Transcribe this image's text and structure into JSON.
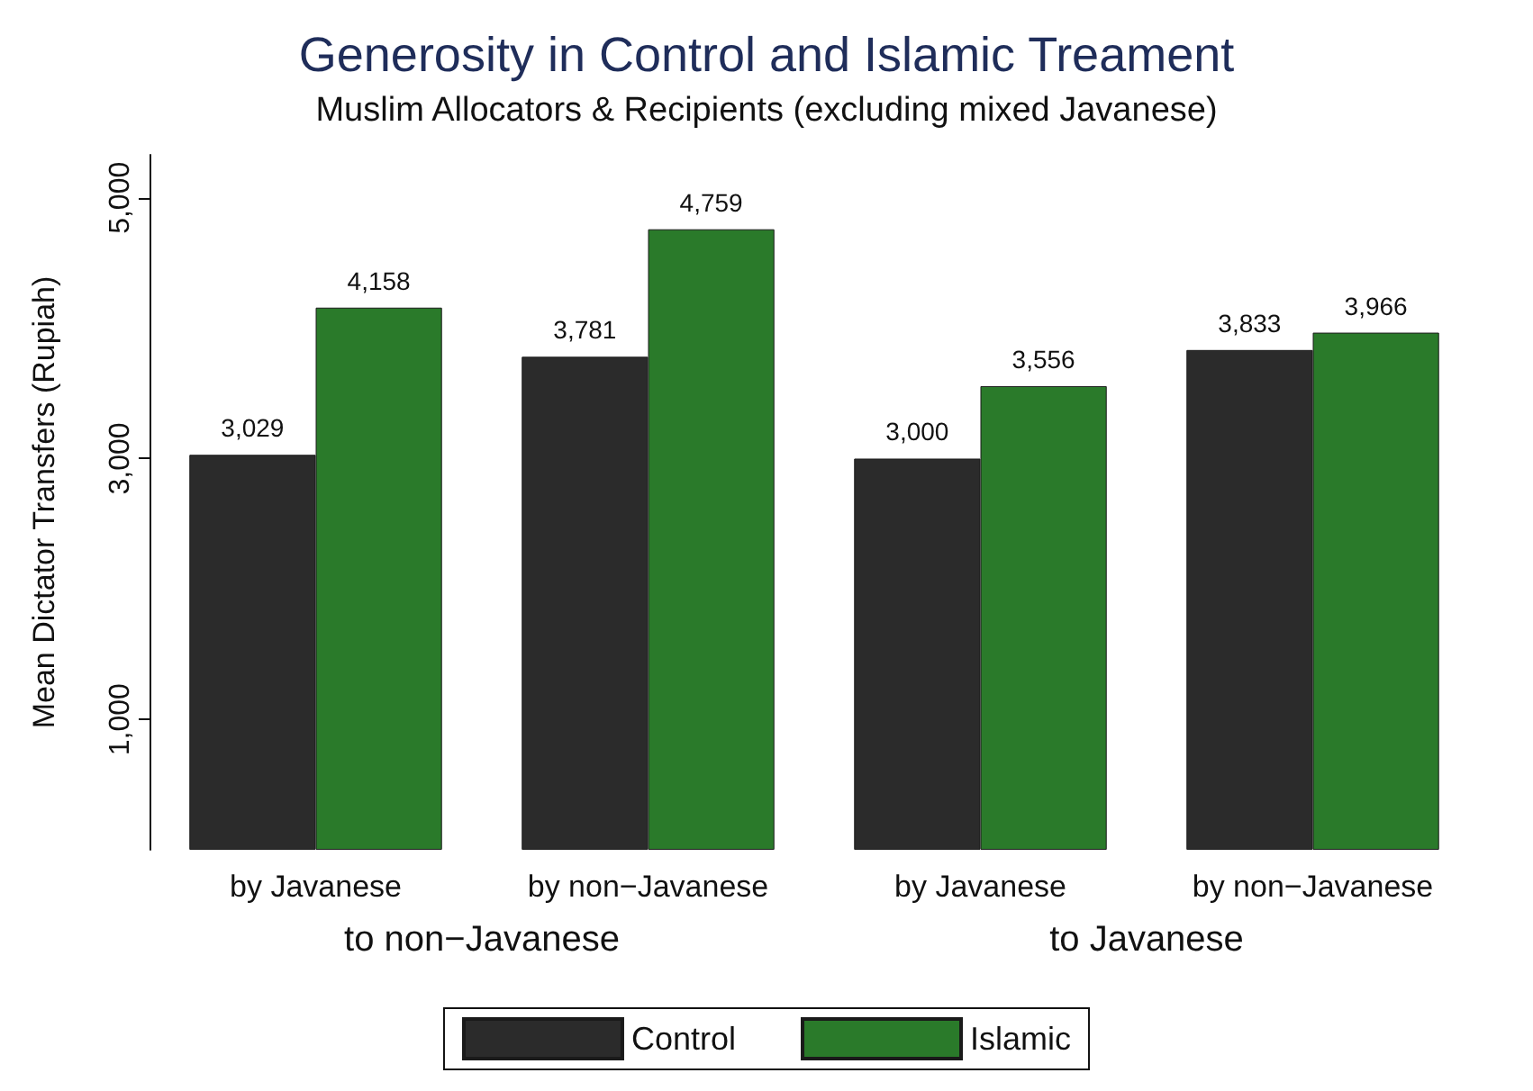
{
  "chart_data": {
    "type": "bar",
    "title": "Generosity in Control and Islamic Treament",
    "subtitle": "Muslim Allocators & Recipients (excluding mixed Javanese)",
    "ylabel": "Mean Dictator Transfers (Rupiah)",
    "categories": [
      "by Javanese",
      "by non−Javanese",
      "by Javanese",
      "by non−Javanese"
    ],
    "annotations": [
      "to non−Javanese",
      "to Javanese"
    ],
    "series": [
      {
        "name": "Control",
        "color": "#2b2b2b",
        "values": [
          3029,
          3781,
          3000,
          3833
        ],
        "value_labels": [
          "3,029",
          "3,781",
          "3,000",
          "3,833"
        ]
      },
      {
        "name": "Islamic",
        "color": "#2a7a2a",
        "values": [
          4158,
          4759,
          3556,
          3966
        ],
        "value_labels": [
          "4,158",
          "4,759",
          "3,556",
          "3,966"
        ]
      }
    ],
    "ylim": [
      0,
      5330
    ],
    "yticks": [
      {
        "value": 1000,
        "label": "1,000"
      },
      {
        "value": 3000,
        "label": "3,000"
      },
      {
        "value": 5000,
        "label": "5,000"
      }
    ],
    "grid": false,
    "legend": "bottom"
  }
}
